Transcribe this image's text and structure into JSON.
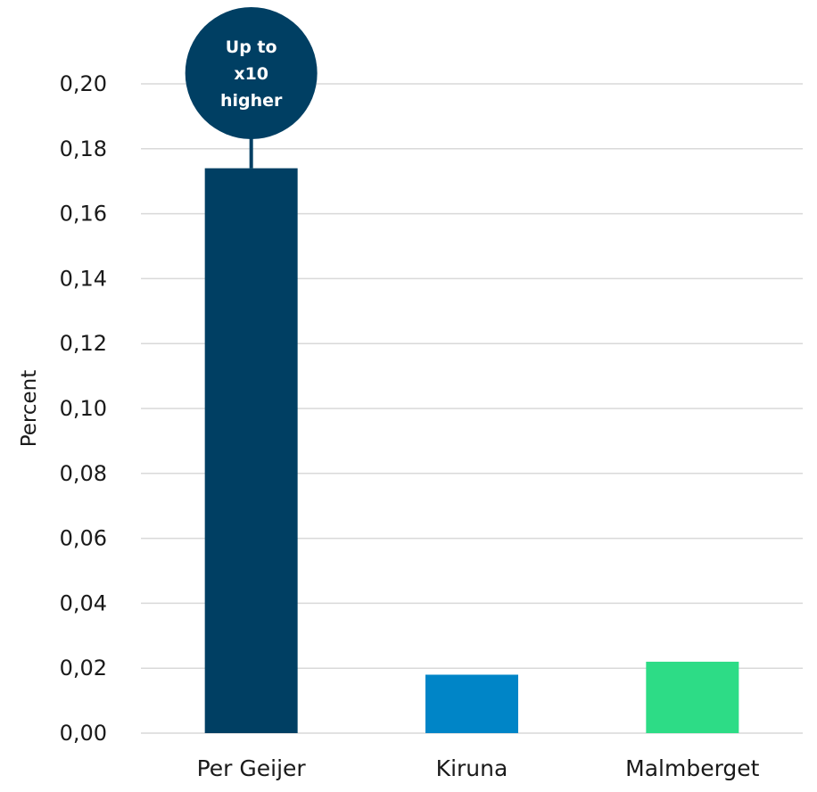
{
  "chart_data": {
    "type": "bar",
    "categories": [
      "Per Geijer",
      "Kiruna",
      "Malmberget"
    ],
    "values": [
      0.174,
      0.018,
      0.022
    ],
    "colors": [
      "#003f63",
      "#0085c7",
      "#2ddc86"
    ],
    "ylabel": "Percent",
    "ylim": [
      0,
      0.2
    ],
    "yticks": [
      "0,00",
      "0,02",
      "0,04",
      "0,06",
      "0,08",
      "0,10",
      "0,12",
      "0,14",
      "0,16",
      "0,18",
      "0,20"
    ],
    "grid": true,
    "annotation": {
      "category": "Per Geijer",
      "lines": [
        "Up to",
        "x10",
        "higher"
      ],
      "color": "#003f63"
    }
  }
}
